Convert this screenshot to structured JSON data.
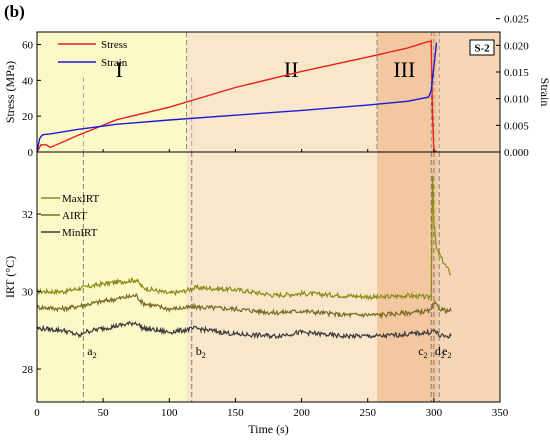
{
  "panel_label": "(b)",
  "chart_data": [
    {
      "type": "line",
      "sample_tag": "S-2",
      "xlim": [
        0,
        350
      ],
      "x_ticks": [
        0,
        50,
        100,
        150,
        200,
        250,
        300,
        350
      ],
      "xlabel": "Time (s)",
      "ylabel": "Stress (MPa)",
      "ylim": [
        0,
        67
      ],
      "y_ticks": [
        0,
        20,
        40,
        60
      ],
      "y2label": "Strain",
      "y2lim": [
        0,
        0.0225
      ],
      "y2_ticks": [
        0.0,
        0.005,
        0.01,
        0.015,
        0.02,
        0.025
      ],
      "y2_tick_labels": [
        "0.000",
        "0.005",
        "0.010",
        "0.015",
        "0.020",
        "0.025"
      ],
      "stages": [
        {
          "label": "I",
          "x_start": 0,
          "x_end": 113,
          "color": "#fbf9c8"
        },
        {
          "label": "II",
          "x_start": 113,
          "x_end": 257,
          "color": "#f9e7cc"
        },
        {
          "label": "III",
          "x_start": 257,
          "x_end": 303,
          "color": "#f3c8a0"
        },
        {
          "label": "",
          "x_start": 303,
          "x_end": 350,
          "color": "#f6d6b6"
        }
      ],
      "legend_position": "top-left",
      "series": [
        {
          "name": "Stress",
          "axis": "left",
          "color": "#e8211a",
          "x": [
            0,
            3,
            7,
            10,
            30,
            60,
            100,
            150,
            200,
            250,
            280,
            295,
            298,
            299,
            300,
            302
          ],
          "y": [
            0,
            4,
            4,
            2.5,
            9,
            18,
            25,
            36,
            45,
            53,
            58,
            61.5,
            62,
            20,
            0.5,
            0.5
          ]
        },
        {
          "name": "Strain",
          "axis": "right",
          "color": "#1b1bd6",
          "x": [
            0,
            2,
            4,
            6,
            10,
            30,
            60,
            100,
            150,
            200,
            250,
            280,
            296,
            298,
            300,
            302
          ],
          "y": [
            0,
            0.0025,
            0.0032,
            0.0033,
            0.0034,
            0.0042,
            0.0052,
            0.006,
            0.0069,
            0.0078,
            0.0088,
            0.0095,
            0.0103,
            0.0115,
            0.016,
            0.0205
          ]
        }
      ]
    },
    {
      "type": "line",
      "xlim": [
        0,
        350
      ],
      "x_ticks": [
        0,
        50,
        100,
        150,
        200,
        250,
        300,
        350
      ],
      "xlabel": "Time (s)",
      "ylabel": "IRT (°C)",
      "ylim": [
        27.15,
        33.6
      ],
      "y_ticks": [
        28,
        30,
        32
      ],
      "legend_position": "top-left",
      "events": [
        {
          "label_base": "a",
          "label_sub": "2",
          "x": 35
        },
        {
          "label_base": "b",
          "label_sub": "2",
          "x": 117
        },
        {
          "label_base": "c",
          "label_sub": "2",
          "x": 298
        },
        {
          "label_base": "d",
          "label_sub": "2",
          "x": 300
        },
        {
          "label_base": "e",
          "label_sub": "2",
          "x": 304
        }
      ],
      "series": [
        {
          "name": "MaxIRT",
          "color": "#8c8c1a",
          "x": [
            0,
            20,
            35,
            50,
            75,
            80,
            100,
            110,
            120,
            150,
            180,
            200,
            230,
            260,
            280,
            296,
            298,
            299,
            300,
            302,
            305,
            310,
            313
          ],
          "y": [
            30.0,
            30.0,
            30.1,
            30.2,
            30.3,
            30.1,
            29.95,
            30.0,
            30.1,
            30.05,
            29.9,
            29.95,
            29.9,
            29.85,
            29.9,
            29.85,
            29.9,
            33.0,
            31.8,
            31.1,
            30.9,
            30.6,
            30.45
          ]
        },
        {
          "name": "AIRT",
          "color": "#7a6b22",
          "x": [
            0,
            20,
            35,
            50,
            75,
            80,
            100,
            120,
            150,
            180,
            200,
            230,
            260,
            280,
            298,
            300,
            305,
            310,
            313
          ],
          "y": [
            29.6,
            29.55,
            29.65,
            29.75,
            29.9,
            29.7,
            29.55,
            29.6,
            29.55,
            29.45,
            29.5,
            29.4,
            29.4,
            29.45,
            29.5,
            29.7,
            29.55,
            29.5,
            29.5
          ]
        },
        {
          "name": "MinIRT",
          "color": "#3a3a3a",
          "x": [
            0,
            20,
            33,
            35,
            50,
            75,
            80,
            100,
            120,
            150,
            180,
            200,
            230,
            260,
            280,
            298,
            300,
            305,
            313
          ],
          "y": [
            29.05,
            29.0,
            28.85,
            28.95,
            29.05,
            29.2,
            29.05,
            28.95,
            29.05,
            28.9,
            28.85,
            28.95,
            28.85,
            28.85,
            28.9,
            28.95,
            29.0,
            28.85,
            28.85
          ]
        }
      ]
    }
  ]
}
